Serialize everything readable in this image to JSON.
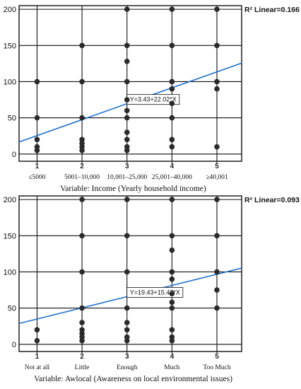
{
  "chart_data": [
    {
      "type": "scatter",
      "x_categories_numeric": [
        "1",
        "2",
        "3",
        "4",
        "5"
      ],
      "x_categories_text": [
        "≤5000",
        "5001–10,000",
        "10,001–25,000",
        "25,001–40,000",
        "≥40,001"
      ],
      "xlabel": "Variable: Income (Yearly household income)",
      "ylabel": "",
      "xlim": [
        0.6,
        5.55
      ],
      "ylim": [
        -10,
        205
      ],
      "yticks": [
        0,
        50,
        100,
        150,
        200
      ],
      "grid": true,
      "r2_label": "R² Linear=0.166",
      "equation": "Y=3.43+22.02*X",
      "fit": {
        "intercept": 3.43,
        "slope": 22.02,
        "color": "#1f6fd1"
      },
      "points": [
        {
          "x": 1,
          "y": 100
        },
        {
          "x": 1,
          "y": 50
        },
        {
          "x": 1,
          "y": 20
        },
        {
          "x": 1,
          "y": 10
        },
        {
          "x": 1,
          "y": 5
        },
        {
          "x": 2,
          "y": 150
        },
        {
          "x": 2,
          "y": 100
        },
        {
          "x": 2,
          "y": 50
        },
        {
          "x": 2,
          "y": 20
        },
        {
          "x": 2,
          "y": 15
        },
        {
          "x": 2,
          "y": 10
        },
        {
          "x": 2,
          "y": 5
        },
        {
          "x": 3,
          "y": 200
        },
        {
          "x": 3,
          "y": 150
        },
        {
          "x": 3,
          "y": 128
        },
        {
          "x": 3,
          "y": 100
        },
        {
          "x": 3,
          "y": 75
        },
        {
          "x": 3,
          "y": 60
        },
        {
          "x": 3,
          "y": 50
        },
        {
          "x": 3,
          "y": 30
        },
        {
          "x": 3,
          "y": 20
        },
        {
          "x": 3,
          "y": 10
        },
        {
          "x": 3,
          "y": 5
        },
        {
          "x": 4,
          "y": 200
        },
        {
          "x": 4,
          "y": 150
        },
        {
          "x": 4,
          "y": 100
        },
        {
          "x": 4,
          "y": 90
        },
        {
          "x": 4,
          "y": 70
        },
        {
          "x": 4,
          "y": 50
        },
        {
          "x": 4,
          "y": 20
        },
        {
          "x": 4,
          "y": 10
        },
        {
          "x": 5,
          "y": 200
        },
        {
          "x": 5,
          "y": 150
        },
        {
          "x": 5,
          "y": 100
        },
        {
          "x": 5,
          "y": 90
        },
        {
          "x": 5,
          "y": 10
        }
      ]
    },
    {
      "type": "scatter",
      "x_categories_numeric": [
        "1",
        "2",
        "3",
        "4",
        "5"
      ],
      "x_categories_text": [
        "Not at all",
        "Little",
        "Enough",
        "Much",
        "Too Much"
      ],
      "xlabel": "Variable: Awlocal (Awareness on local environmental issues)",
      "ylabel": "",
      "xlim": [
        0.6,
        5.55
      ],
      "ylim": [
        -10,
        205
      ],
      "yticks": [
        0,
        50,
        100,
        150,
        200
      ],
      "grid": true,
      "r2_label": "R² Linear=0.093",
      "equation": "Y=19.43+15.47*X",
      "fit": {
        "intercept": 19.43,
        "slope": 15.47,
        "color": "#1f6fd1"
      },
      "points": [
        {
          "x": 1,
          "y": 20
        },
        {
          "x": 1,
          "y": 5
        },
        {
          "x": 2,
          "y": 200
        },
        {
          "x": 2,
          "y": 150
        },
        {
          "x": 2,
          "y": 100
        },
        {
          "x": 2,
          "y": 50
        },
        {
          "x": 2,
          "y": 30
        },
        {
          "x": 2,
          "y": 20
        },
        {
          "x": 2,
          "y": 15
        },
        {
          "x": 2,
          "y": 10
        },
        {
          "x": 2,
          "y": 5
        },
        {
          "x": 3,
          "y": 200
        },
        {
          "x": 3,
          "y": 150
        },
        {
          "x": 3,
          "y": 100
        },
        {
          "x": 3,
          "y": 50
        },
        {
          "x": 3,
          "y": 30
        },
        {
          "x": 3,
          "y": 20
        },
        {
          "x": 3,
          "y": 10
        },
        {
          "x": 3,
          "y": 5
        },
        {
          "x": 4,
          "y": 200
        },
        {
          "x": 4,
          "y": 150
        },
        {
          "x": 4,
          "y": 130
        },
        {
          "x": 4,
          "y": 100
        },
        {
          "x": 4,
          "y": 90
        },
        {
          "x": 4,
          "y": 70
        },
        {
          "x": 4,
          "y": 58
        },
        {
          "x": 4,
          "y": 50
        },
        {
          "x": 4,
          "y": 20
        },
        {
          "x": 4,
          "y": 10
        },
        {
          "x": 4,
          "y": 5
        },
        {
          "x": 5,
          "y": 200
        },
        {
          "x": 5,
          "y": 150
        },
        {
          "x": 5,
          "y": 100
        },
        {
          "x": 5,
          "y": 75
        },
        {
          "x": 5,
          "y": 50
        }
      ]
    }
  ]
}
